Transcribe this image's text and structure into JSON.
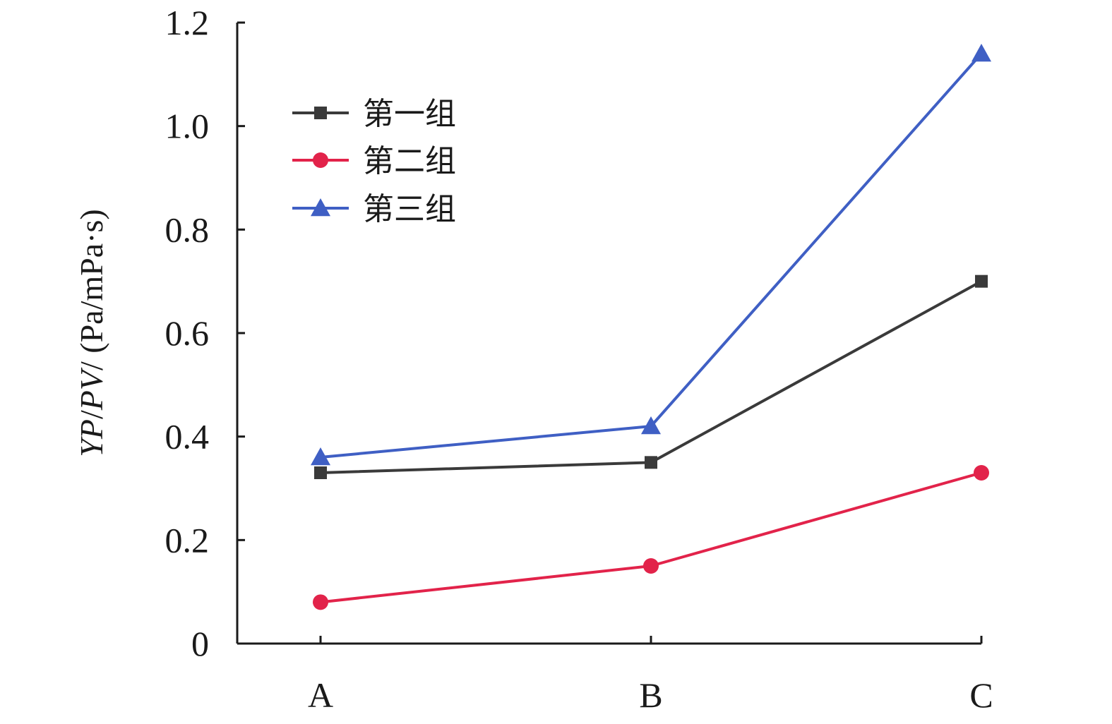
{
  "chart_data": {
    "type": "line",
    "categories": [
      "A",
      "B",
      "C"
    ],
    "series": [
      {
        "name": "第一组",
        "values": [
          0.33,
          0.35,
          0.7
        ],
        "color": "#3a3a3a",
        "marker": "square"
      },
      {
        "name": "第二组",
        "values": [
          0.08,
          0.15,
          0.33
        ],
        "color": "#e2234a",
        "marker": "circle"
      },
      {
        "name": "第三组",
        "values": [
          0.36,
          0.42,
          1.14
        ],
        "color": "#3f5fc4",
        "marker": "triangle"
      }
    ],
    "ylabel_parts": [
      {
        "text": "YP",
        "italic": true
      },
      {
        "text": "/",
        "italic": false
      },
      {
        "text": "PV",
        "italic": true
      },
      {
        "text": "/ (Pa/mPa·s)",
        "italic": false
      }
    ],
    "xlabel": "",
    "ylim": [
      0,
      1.2
    ],
    "yticks": [
      "0",
      "0.2",
      "0.4",
      "0.6",
      "0.8",
      "1.0",
      "1.2"
    ],
    "ytick_values": [
      0,
      0.2,
      0.4,
      0.6,
      0.8,
      1.0,
      1.2
    ],
    "grid": false,
    "legend_position": "top-left"
  }
}
